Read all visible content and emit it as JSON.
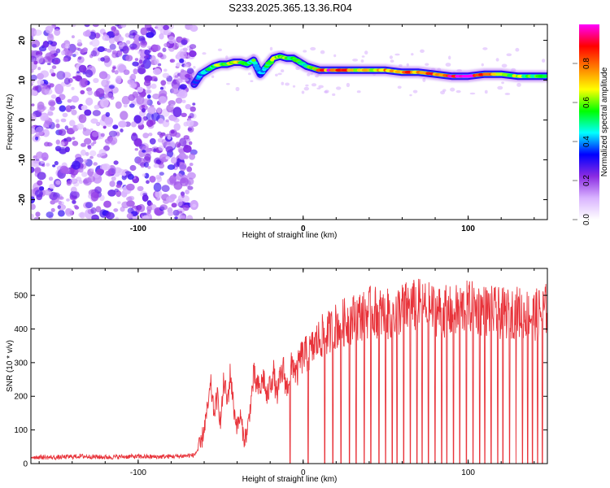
{
  "title": "S233.2025.365.13.36.R04",
  "chart_data": [
    {
      "type": "heatmap",
      "name": "spectrogram",
      "xlabel": "Height of straight line (km)",
      "ylabel": "Frequency (Hz)",
      "xlim": [
        -165,
        148
      ],
      "ylim": [
        -25,
        24
      ],
      "xticks": [
        -100,
        0,
        100
      ],
      "yticks": [
        -20,
        -10,
        0,
        10,
        20
      ],
      "colorbar": {
        "label": "Normalized spectral amplitude",
        "range": [
          0,
          1
        ],
        "ticks": [
          "0.0",
          "0.2",
          "0.4",
          "0.6",
          "0.8"
        ],
        "colors": [
          "#ffffff",
          "#d9b3ff",
          "#8a2be2",
          "#0000ff",
          "#00ffff",
          "#00ff00",
          "#ffff00",
          "#ff7f00",
          "#ff0000",
          "#ff00ff"
        ]
      },
      "noise_region_x": [
        -165,
        -66
      ],
      "signal_ridge": {
        "x": [
          -66,
          -62,
          -58,
          -54,
          -50,
          -46,
          -42,
          -38,
          -34,
          -30,
          -26,
          -22,
          -18,
          -14,
          -10,
          -6,
          -2,
          2,
          10,
          20,
          30,
          40,
          50,
          60,
          70,
          80,
          90,
          100,
          110,
          120,
          130,
          140,
          148
        ],
        "freq": [
          9,
          11.5,
          12.5,
          13.5,
          14,
          14,
          14.5,
          14.5,
          14,
          15,
          11.5,
          13.5,
          15.5,
          16,
          15.5,
          15.5,
          14.5,
          13.5,
          12.5,
          12.5,
          12.5,
          12.5,
          12.5,
          12,
          12,
          11.5,
          11,
          11,
          11.5,
          11.5,
          11,
          11,
          11
        ],
        "amplitude": [
          0.3,
          0.4,
          0.45,
          0.55,
          0.6,
          0.55,
          0.75,
          0.7,
          0.5,
          0.55,
          0.4,
          0.5,
          0.6,
          0.65,
          0.6,
          0.6,
          0.55,
          0.5,
          0.8,
          0.9,
          0.75,
          0.7,
          0.75,
          0.8,
          0.85,
          0.8,
          0.9,
          0.95,
          0.75,
          0.65,
          0.6,
          0.55,
          0.5
        ]
      }
    },
    {
      "type": "line",
      "name": "snr",
      "xlabel": "Height of straight line (km)",
      "ylabel": "SNR (10 * v/v)",
      "xlim": [
        -165,
        148
      ],
      "ylim": [
        0,
        580
      ],
      "xticks": [
        -100,
        0,
        100
      ],
      "yticks": [
        0,
        100,
        200,
        300,
        400,
        500
      ],
      "color": "#e8333a",
      "series": [
        {
          "name": "SNR",
          "x": [
            -165,
            -150,
            -135,
            -120,
            -105,
            -90,
            -75,
            -66,
            -62,
            -58,
            -56,
            -54,
            -52,
            -50,
            -48,
            -46,
            -44,
            -42,
            -40,
            -38,
            -36,
            -34,
            -32,
            -30,
            -28,
            -26,
            -24,
            -22,
            -20,
            -18,
            -16,
            -14,
            -12,
            -10,
            -8,
            -6,
            -4,
            -2,
            0,
            4,
            8,
            12,
            16,
            20,
            25,
            30,
            35,
            40,
            45,
            50,
            60,
            70,
            80,
            90,
            100,
            110,
            120,
            130,
            140,
            148
          ],
          "y": [
            20,
            18,
            22,
            19,
            21,
            20,
            22,
            25,
            55,
            160,
            230,
            150,
            200,
            120,
            250,
            180,
            270,
            160,
            110,
            140,
            75,
            90,
            170,
            260,
            230,
            220,
            260,
            190,
            240,
            270,
            200,
            250,
            280,
            220,
            270,
            300,
            260,
            310,
            320,
            330,
            360,
            380,
            390,
            410,
            420,
            430,
            440,
            450,
            450,
            440,
            460,
            470,
            455,
            450,
            465,
            455,
            445,
            450,
            440,
            460
          ]
        }
      ],
      "dropouts_x": [
        -8,
        3,
        13,
        18,
        23,
        28,
        32,
        37,
        41,
        46,
        50,
        54,
        57,
        61,
        65,
        69,
        72,
        76,
        80,
        84,
        87,
        91,
        95,
        99,
        103,
        107,
        110,
        114,
        118,
        121,
        125,
        129,
        133,
        136,
        139,
        142,
        145
      ]
    }
  ]
}
